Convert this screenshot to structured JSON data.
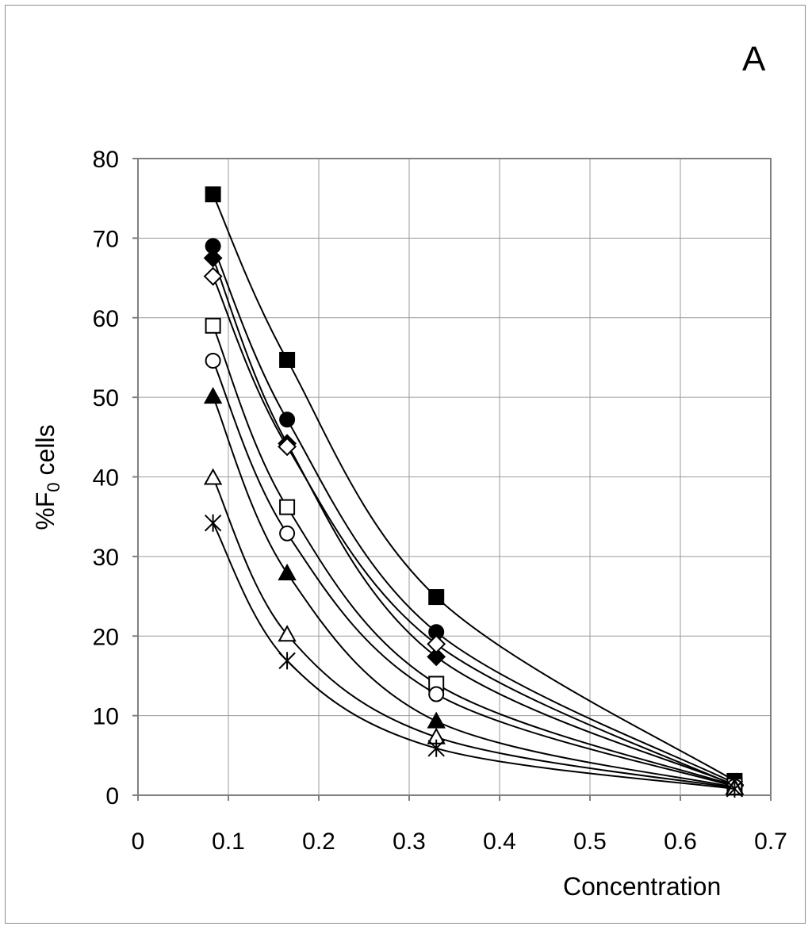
{
  "panel_label": "A",
  "chart_data": {
    "type": "line",
    "title": "",
    "xlabel": "Concentration",
    "ylabel": "%F0 cells",
    "ylabel_main": "%F",
    "ylabel_sub": "0",
    "ylabel_rest": " cells",
    "xlim": [
      0,
      0.7
    ],
    "ylim": [
      0,
      80
    ],
    "xticks": [
      0,
      0.1,
      0.2,
      0.3,
      0.4,
      0.5,
      0.6,
      0.7
    ],
    "xtick_labels": [
      "0",
      "0.1",
      "0.2",
      "0.3",
      "0.4",
      "0.5",
      "0.6",
      "0.7"
    ],
    "yticks": [
      0,
      10,
      20,
      30,
      40,
      50,
      60,
      70,
      80
    ],
    "ytick_labels": [
      "0",
      "10",
      "20",
      "30",
      "40",
      "50",
      "60",
      "70",
      "80"
    ],
    "grid": true,
    "x": [
      0.083,
      0.165,
      0.33,
      0.66
    ],
    "series": [
      {
        "name": "filled-square",
        "marker": "square-filled",
        "values": [
          75.5,
          54.7,
          24.9,
          1.8
        ]
      },
      {
        "name": "filled-circle",
        "marker": "circle-filled",
        "values": [
          69.0,
          47.2,
          20.5,
          1.5
        ]
      },
      {
        "name": "filled-diamond",
        "marker": "diamond-filled",
        "values": [
          67.5,
          44.2,
          17.4,
          1.3
        ]
      },
      {
        "name": "open-diamond",
        "marker": "diamond-open",
        "values": [
          65.2,
          43.8,
          19.0,
          1.2
        ]
      },
      {
        "name": "open-square",
        "marker": "square-open",
        "values": [
          59.0,
          36.2,
          14.0,
          1.2
        ]
      },
      {
        "name": "open-circle",
        "marker": "circle-open",
        "values": [
          54.6,
          32.9,
          12.7,
          1.1
        ]
      },
      {
        "name": "filled-triangle",
        "marker": "triangle-filled",
        "values": [
          50.1,
          27.9,
          9.3,
          1.0
        ]
      },
      {
        "name": "open-triangle",
        "marker": "triangle-open",
        "values": [
          39.9,
          20.2,
          7.3,
          0.9
        ]
      },
      {
        "name": "asterisk",
        "marker": "asterisk",
        "values": [
          34.2,
          16.9,
          5.9,
          0.8
        ]
      }
    ]
  }
}
